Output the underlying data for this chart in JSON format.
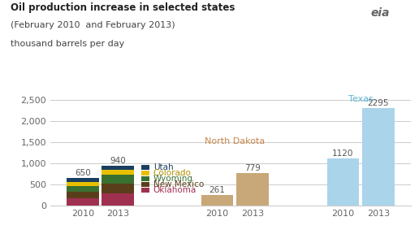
{
  "title_line1": "Oil production increase in selected states",
  "title_line2": "(February 2010  and February 2013)",
  "title_line3": "thousand barrels per day",
  "texas_label": "Texas",
  "nd_label": "North Dakota",
  "totals_west": [
    650,
    940
  ],
  "segments_2010": {
    "Oklahoma": 175,
    "New Mexico": 160,
    "Wyoming": 140,
    "Colorado": 95,
    "Utah": 80
  },
  "segments_2013": {
    "Oklahoma": 290,
    "New Mexico": 240,
    "Wyoming": 195,
    "Colorado": 130,
    "Utah": 85
  },
  "north_dakota": {
    "2010": 261,
    "2013": 779
  },
  "texas": {
    "2010": 1120,
    "2013": 2295
  },
  "seg_order": [
    "Oklahoma",
    "New Mexico",
    "Wyoming",
    "Colorado",
    "Utah"
  ],
  "colors": {
    "Oklahoma": "#a03050",
    "New Mexico": "#5a3e1b",
    "Wyoming": "#3a7030",
    "Colorado": "#e8c000",
    "Utah": "#1a3f60",
    "North Dakota": "#c8a878",
    "Texas": "#aad4ea"
  },
  "legend_order": [
    "Utah",
    "Colorado",
    "Wyoming",
    "New Mexico",
    "Oklahoma"
  ],
  "legend_text_colors": {
    "Utah": "#1a3f60",
    "Colorado": "#b09000",
    "Wyoming": "#3a7030",
    "New Mexico": "#5a3e1b",
    "Oklahoma": "#a03050"
  },
  "ylim": [
    0,
    2750
  ],
  "yticks": [
    0,
    500,
    1000,
    1500,
    2000,
    2500
  ],
  "ytick_labels": [
    "0",
    "500",
    "1,000",
    "1,500",
    "2,000",
    "2,500"
  ],
  "background_color": "#ffffff",
  "grid_color": "#cccccc",
  "label_color_nd": "#c8864a",
  "label_color_texas": "#5bb5d5",
  "value_label_color": "#555555",
  "axis_label_color": "#666666",
  "title1_color": "#222222",
  "title23_color": "#444444"
}
